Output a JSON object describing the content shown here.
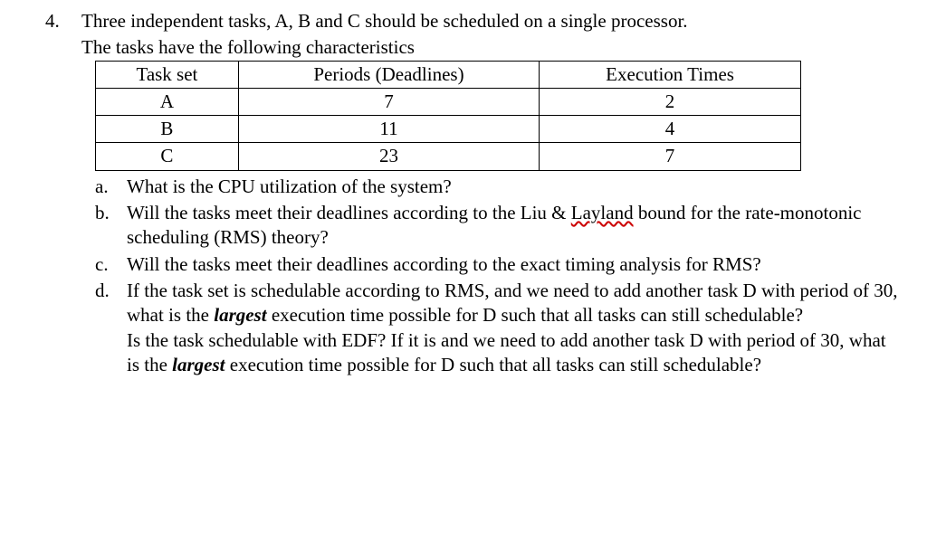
{
  "question": {
    "number": "4.",
    "intro_line1": "Three independent tasks, A, B and C should be scheduled on a single processor.",
    "intro_line2": "The tasks have the following characteristics"
  },
  "table": {
    "headers": [
      "Task set",
      "Periods (Deadlines)",
      "Execution Times"
    ],
    "rows": [
      [
        "A",
        "7",
        "2"
      ],
      [
        "B",
        "11",
        "4"
      ],
      [
        "C",
        "23",
        "7"
      ]
    ]
  },
  "subquestions": {
    "a": {
      "letter": "a.",
      "text": "What is the CPU utilization of the system?"
    },
    "b": {
      "letter": "b.",
      "prefix": "Will the tasks meet their deadlines according to the Liu & ",
      "underlined": "Layland",
      "suffix": " bound for the rate-monotonic scheduling (RMS) theory?"
    },
    "c": {
      "letter": "c.",
      "text": "Will the tasks meet their deadlines according to the exact timing analysis for RMS?"
    },
    "d": {
      "letter": "d.",
      "part1_prefix": "If the task set is schedulable according to RMS, and we need to add another task D with period of 30, what is the ",
      "largest1": "largest",
      "part1_suffix": " execution time possible for D such that all tasks can still schedulable?",
      "part2_prefix": "Is the task schedulable with EDF? If it is and we need to add another task D with period of 30, what is the ",
      "largest2": "largest",
      "part2_suffix": " execution time possible for D such that all tasks can still schedulable?"
    }
  }
}
